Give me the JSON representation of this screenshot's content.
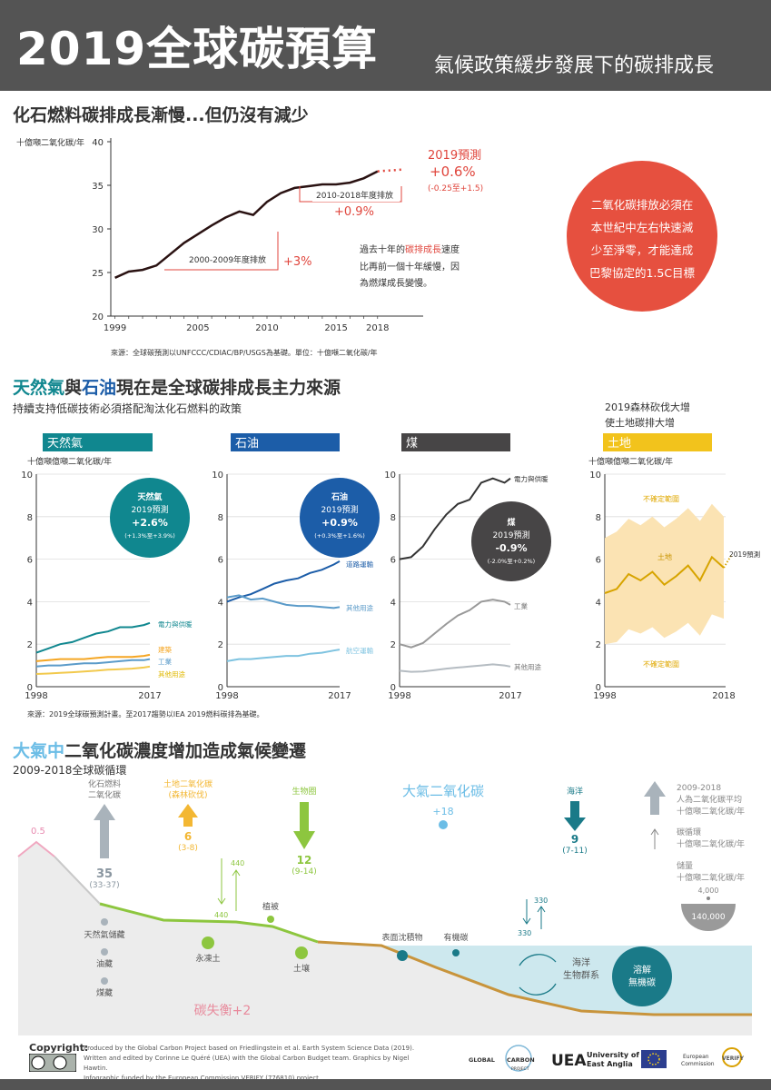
{
  "header": {
    "title": "2019全球碳預算",
    "subtitle": "氣候政策緩步發展下的碳排成長"
  },
  "section1": {
    "title": "化石燃料碳排成長漸慢...但仍沒有減少",
    "unit": "十億噸二氧化碳/年",
    "forecast_label": "2019預測",
    "forecast_value": "+0.6%",
    "forecast_range": "(-0.25至+1.5)",
    "period2_label": "2010-2018年度排放",
    "period2_value": "+0.9%",
    "period1_label": "2000-2009年度排放",
    "period1_value": "+3%",
    "note_line1_a": "過去十年的",
    "note_line1_b": "碳排成長",
    "note_line1_c": "速度",
    "note_line2": "比再前一個十年緩慢，因",
    "note_line3": "為燃煤成長變慢。",
    "source": "來源：全球碳預測以UNFCCC/CDIAC/BP/USGS為基礎。單位：十億噸二氧化碳/年",
    "circle_lines": [
      "二氧化碳排放必須在",
      "本世紀中左右快速減",
      "少至淨零，才能達成",
      "巴黎協定的1.5C目標"
    ]
  },
  "section2": {
    "title_a": "天然氣",
    "title_b": "與",
    "title_c": "石油",
    "title_d": "現在是全球碳排成長主力來源",
    "subtitle": "持續支持低碳技術必須搭配淘汰化石燃料的政策",
    "land_note": [
      "2019森林砍伐大增",
      "使土地碳排大增"
    ],
    "unit": "十億噸億噸二氧化碳/年",
    "source": "來源：2019全球碳預測計畫。至2017趨勢以IEA 2019燃料碳排為基礎。",
    "panels": {
      "gas": {
        "name": "天然氣",
        "bubble": [
          "天然氣",
          "2019預測",
          "+2.6%",
          "(+1.3%至+3.9%)"
        ],
        "labels": [
          "電力與供暖",
          "建築",
          "工業",
          "其他用途"
        ]
      },
      "oil": {
        "name": "石油",
        "bubble": [
          "石油",
          "2019預測",
          "+0.9%",
          "(+0.3%至+1.6%)"
        ],
        "labels": [
          "道路運輸",
          "其他用途",
          "航空運輸"
        ]
      },
      "coal": {
        "name": "煤",
        "bubble": [
          "煤",
          "2019預測",
          "-0.9%",
          "(-2.0%至+0.2%)"
        ],
        "labels": [
          "電力與供暖",
          "工業",
          "其他用途"
        ]
      },
      "land": {
        "name": "土地",
        "labels": [
          "不確定範圍",
          "土地",
          "不確定範圍",
          "2019預測"
        ]
      }
    }
  },
  "section3": {
    "title_a": "大氣中",
    "title_b": "二氧化碳濃度增加造成氣候變遷",
    "subtitle": "2009-2018全球碳循環",
    "fossil": {
      "label": [
        "化石燃料",
        "二氧化碳"
      ],
      "value": "35",
      "range": "(33-37)"
    },
    "landuse": {
      "label": [
        "土地二氧化碳",
        "(森林砍伐)"
      ],
      "value": "6",
      "range": "(3-8)"
    },
    "biosphere": {
      "label": "生物圈",
      "value": "12",
      "range": "(9-14)"
    },
    "atmosphere": {
      "label": "大氣二氧化碳",
      "value": "+18"
    },
    "ocean": {
      "label": "海洋",
      "value": "9",
      "range": "(7-11)"
    },
    "volcano": "0.5",
    "flux440a": "440",
    "flux440b": "440",
    "flux330a": "330",
    "flux330b": "330",
    "stores": [
      "天然氣儲藏",
      "油藏",
      "煤藏",
      "永凍土",
      "土壤",
      "植被",
      "表面沈積物",
      "有機碳"
    ],
    "marine": [
      "海洋",
      "生物群系"
    ],
    "dissolved": [
      "溶解",
      "無機碳"
    ],
    "imbalance": "碳失衡+2",
    "legend": {
      "human": [
        "2009-2018",
        "人為二氧化碳平均",
        "十億噸二氧化碳/年"
      ],
      "cycle": [
        "碳循環",
        "十億噸二氧化碳/年"
      ],
      "stock": [
        "儲量",
        "十億噸二氧化碳/年"
      ],
      "stock_small": "4,000",
      "stock_large": "140,000"
    }
  },
  "footer": {
    "copyright": "Copyright:",
    "lines": [
      "Produced by the Global Carbon Project based on Friedlingstein et al. Earth System Science Data (2019).",
      "Written and edited by Corinne Le Quéré (UEA) with the Global Carbon Budget team. Graphics by Nigel Hawtin.",
      "Infographic funded by the European Commission VERIFY (776810) project."
    ],
    "logo_gcp": [
      "GLOBAL",
      "CARBON",
      "PROJECT"
    ],
    "logo_uea": [
      "University of",
      "East Anglia"
    ],
    "logo_ec": [
      "European",
      "Commission"
    ],
    "logo_verify": "VERIFY"
  },
  "chart_data": [
    {
      "type": "line",
      "title": "化石燃料碳排成長漸慢...但仍沒有減少",
      "ylabel": "十億噸二氧化碳/年",
      "ylim": [
        20,
        40
      ],
      "xticks": [
        1999,
        2005,
        2010,
        2015,
        2018
      ],
      "yticks": [
        20,
        25,
        30,
        35,
        40
      ],
      "x": [
        1999,
        2000,
        2001,
        2002,
        2003,
        2004,
        2005,
        2006,
        2007,
        2008,
        2009,
        2010,
        2011,
        2012,
        2013,
        2014,
        2015,
        2016,
        2017,
        2018,
        2019
      ],
      "series": [
        {
          "values": [
            24.4,
            25.1,
            25.3,
            25.8,
            27.1,
            28.4,
            29.4,
            30.4,
            31.3,
            32.0,
            31.6,
            33.1,
            34.1,
            34.7,
            34.9,
            35.1,
            35.1,
            35.3,
            35.8,
            36.6,
            36.8
          ]
        }
      ],
      "annotations": [
        "2019預測 +0.6% (-0.25至+1.5)",
        "2010-2018年度排放 +0.9%",
        "2000-2009年度排放 +3%"
      ]
    },
    {
      "type": "line",
      "title": "天然氣",
      "ylim": [
        0,
        10
      ],
      "xticks": [
        1998,
        2017
      ],
      "yticks": [
        0,
        2,
        4,
        6,
        8,
        10
      ],
      "x": [
        1998,
        2000,
        2002,
        2004,
        2006,
        2008,
        2010,
        2012,
        2014,
        2016,
        2017
      ],
      "series": [
        {
          "name": "電力與供暖",
          "values": [
            1.6,
            1.8,
            2.0,
            2.1,
            2.3,
            2.5,
            2.6,
            2.8,
            2.8,
            2.9,
            3.0
          ]
        },
        {
          "name": "建築",
          "values": [
            1.2,
            1.25,
            1.3,
            1.3,
            1.3,
            1.35,
            1.4,
            1.4,
            1.4,
            1.45,
            1.5
          ]
        },
        {
          "name": "工業",
          "values": [
            0.95,
            1.0,
            1.0,
            1.05,
            1.1,
            1.1,
            1.15,
            1.2,
            1.25,
            1.25,
            1.3
          ]
        },
        {
          "name": "其他用途",
          "values": [
            0.6,
            0.62,
            0.65,
            0.68,
            0.72,
            0.75,
            0.8,
            0.82,
            0.85,
            0.9,
            0.95
          ]
        }
      ]
    },
    {
      "type": "line",
      "title": "石油",
      "ylim": [
        0,
        10
      ],
      "xticks": [
        1998,
        2017
      ],
      "yticks": [
        0,
        2,
        4,
        6,
        8,
        10
      ],
      "x": [
        1998,
        2000,
        2002,
        2004,
        2006,
        2008,
        2010,
        2012,
        2014,
        2016,
        2017
      ],
      "series": [
        {
          "name": "道路運輸",
          "values": [
            4.0,
            4.2,
            4.35,
            4.6,
            4.85,
            5.0,
            5.1,
            5.35,
            5.5,
            5.75,
            5.9
          ]
        },
        {
          "name": "其他用途",
          "values": [
            4.2,
            4.3,
            4.1,
            4.15,
            4.0,
            3.85,
            3.8,
            3.8,
            3.75,
            3.7,
            3.75
          ]
        },
        {
          "name": "航空運輸",
          "values": [
            1.2,
            1.3,
            1.3,
            1.35,
            1.4,
            1.45,
            1.45,
            1.55,
            1.6,
            1.7,
            1.75
          ]
        }
      ]
    },
    {
      "type": "line",
      "title": "煤",
      "ylim": [
        0,
        10
      ],
      "xticks": [
        1998,
        2017
      ],
      "yticks": [
        0,
        2,
        4,
        6,
        8,
        10
      ],
      "x": [
        1998,
        2000,
        2002,
        2004,
        2006,
        2008,
        2010,
        2012,
        2014,
        2016,
        2017
      ],
      "series": [
        {
          "name": "電力與供暖",
          "values": [
            6.0,
            6.1,
            6.6,
            7.4,
            8.1,
            8.6,
            8.8,
            9.6,
            9.8,
            9.6,
            9.8
          ]
        },
        {
          "name": "工業",
          "values": [
            2.0,
            1.85,
            2.05,
            2.5,
            2.95,
            3.35,
            3.6,
            4.0,
            4.1,
            4.0,
            3.85
          ]
        },
        {
          "name": "其他用途",
          "values": [
            0.75,
            0.7,
            0.72,
            0.78,
            0.85,
            0.9,
            0.95,
            1.0,
            1.05,
            1.0,
            0.95
          ]
        }
      ]
    },
    {
      "type": "area",
      "title": "土地",
      "ylim": [
        0,
        10
      ],
      "xticks": [
        1998,
        2018
      ],
      "yticks": [
        0,
        2,
        4,
        6,
        8,
        10
      ],
      "x": [
        1998,
        2000,
        2002,
        2004,
        2006,
        2008,
        2010,
        2012,
        2014,
        2016,
        2018,
        2019
      ],
      "series": [
        {
          "name": "土地",
          "values": [
            4.4,
            4.6,
            5.3,
            5.0,
            5.4,
            4.8,
            5.2,
            5.7,
            5.0,
            6.1,
            5.6,
            6.2
          ]
        },
        {
          "name": "不確定範圍",
          "upper": [
            7.0,
            7.3,
            7.9,
            7.6,
            8.0,
            7.5,
            7.9,
            8.4,
            7.8,
            8.6,
            8.0,
            8.2
          ],
          "lower": [
            2.0,
            2.1,
            2.7,
            2.5,
            2.8,
            2.3,
            2.6,
            3.0,
            2.4,
            3.4,
            3.2,
            3.5
          ]
        }
      ]
    }
  ]
}
